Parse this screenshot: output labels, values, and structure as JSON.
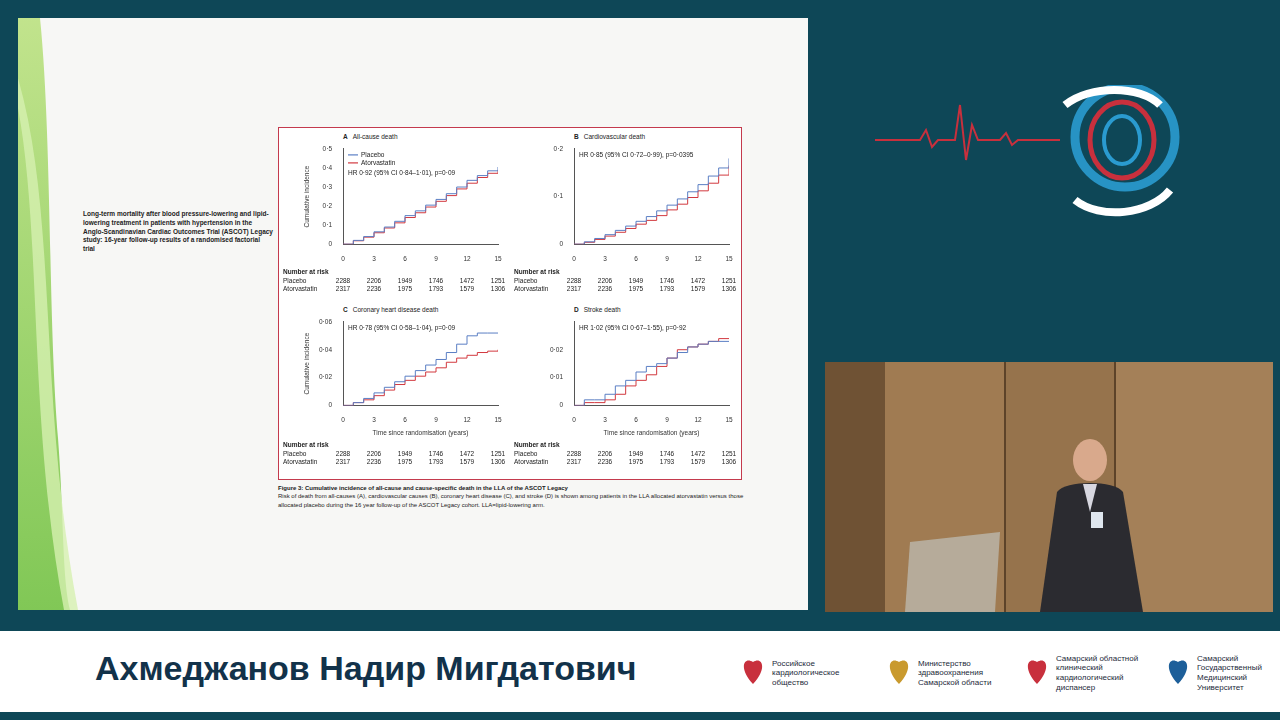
{
  "paper_title": "Long-term mortality after blood pressure-lowering and lipid-lowering treatment in patients with hypertension in the Anglo-Scandinavian Cardiac Outcomes Trial (ASCOT) Legacy study: 16-year follow-up results of a randomised factorial trial",
  "chart_data": [
    {
      "type": "line",
      "panel": "A",
      "title": "All-cause death",
      "annotation": "HR 0·92 (95% CI 0·84–1·01), p=0·09",
      "y_label": "Cumulative incidence",
      "line_style": "steps",
      "grid": false,
      "legend": "upper left",
      "x": [
        0,
        1,
        2,
        3,
        4,
        5,
        6,
        7,
        8,
        9,
        10,
        11,
        12,
        13,
        14,
        15
      ],
      "series": [
        {
          "name": "Placebo",
          "color": "#5b7fc4",
          "values": [
            0,
            0.02,
            0.04,
            0.065,
            0.09,
            0.12,
            0.15,
            0.175,
            0.205,
            0.235,
            0.265,
            0.3,
            0.335,
            0.36,
            0.385,
            0.405
          ]
        },
        {
          "name": "Atorvastatin",
          "color": "#d2393f",
          "values": [
            0,
            0.018,
            0.037,
            0.06,
            0.085,
            0.112,
            0.14,
            0.165,
            0.195,
            0.225,
            0.255,
            0.29,
            0.32,
            0.35,
            0.372,
            0.39
          ]
        }
      ],
      "xlim": [
        0,
        15
      ],
      "xticks": [
        0,
        3,
        6,
        9,
        12,
        15
      ],
      "ylim": [
        0,
        0.5
      ],
      "yticks": [
        0,
        {
          "value": 0.1,
          "label": "0·1"
        },
        {
          "value": 0.2,
          "label": "0·2"
        },
        {
          "value": 0.3,
          "label": "0·3"
        },
        {
          "value": 0.4,
          "label": "0·4"
        },
        {
          "value": 0.5,
          "label": "0·5"
        }
      ],
      "number_at_risk": {
        "title": "Number at risk",
        "rows": [
          {
            "name": "Placebo",
            "values": [
              2288,
              2206,
              1949,
              1746,
              1472,
              1251
            ]
          },
          {
            "name": "Atorvastatin",
            "values": [
              2317,
              2236,
              1975,
              1793,
              1579,
              1306
            ]
          }
        ]
      }
    },
    {
      "type": "line",
      "panel": "B",
      "title": "Cardiovascular death",
      "annotation": "HR 0·85 (95% CI 0·72–0·99), p=0·0395",
      "line_style": "steps",
      "grid": false,
      "x": [
        0,
        1,
        2,
        3,
        4,
        5,
        6,
        7,
        8,
        9,
        10,
        11,
        12,
        13,
        14,
        15
      ],
      "series": [
        {
          "name": "Placebo",
          "color": "#5b7fc4",
          "values": [
            0,
            0.005,
            0.012,
            0.02,
            0.029,
            0.038,
            0.048,
            0.058,
            0.07,
            0.082,
            0.095,
            0.11,
            0.125,
            0.143,
            0.16,
            0.18
          ]
        },
        {
          "name": "Atorvastatin",
          "color": "#d2393f",
          "values": [
            0,
            0.004,
            0.01,
            0.017,
            0.025,
            0.033,
            0.042,
            0.05,
            0.06,
            0.072,
            0.084,
            0.098,
            0.112,
            0.128,
            0.145,
            0.165
          ]
        }
      ],
      "xlim": [
        0,
        15
      ],
      "xticks": [
        0,
        3,
        6,
        9,
        12,
        15
      ],
      "ylim": [
        0,
        0.2
      ],
      "yticks": [
        0,
        {
          "value": 0.1,
          "label": "0·1"
        },
        {
          "value": 0.2,
          "label": "0·2"
        }
      ],
      "number_at_risk": {
        "title": "Number at risk",
        "rows": [
          {
            "name": "Placebo",
            "values": [
              2288,
              2206,
              1949,
              1746,
              1472,
              1251
            ]
          },
          {
            "name": "Atorvastatin",
            "values": [
              2317,
              2236,
              1975,
              1793,
              1579,
              1306
            ]
          }
        ]
      }
    },
    {
      "type": "line",
      "panel": "C",
      "title": "Coronary heart disease death",
      "annotation": "HR 0·78 (95% CI 0·58–1·04), p=0·09",
      "y_label": "Cumulative incidence",
      "x_label": "Time since randomisation (years)",
      "line_style": "steps",
      "grid": false,
      "x": [
        0,
        1,
        2,
        3,
        4,
        5,
        6,
        7,
        8,
        9,
        10,
        11,
        12,
        13,
        14,
        15
      ],
      "series": [
        {
          "name": "Placebo",
          "color": "#5b7fc4",
          "values": [
            0,
            0.002,
            0.005,
            0.009,
            0.013,
            0.017,
            0.021,
            0.025,
            0.029,
            0.033,
            0.038,
            0.044,
            0.05,
            0.052,
            0.052,
            0.052
          ]
        },
        {
          "name": "Atorvastatin",
          "color": "#d2393f",
          "values": [
            0,
            0.002,
            0.004,
            0.007,
            0.011,
            0.015,
            0.018,
            0.021,
            0.024,
            0.027,
            0.031,
            0.034,
            0.036,
            0.038,
            0.039,
            0.04
          ]
        }
      ],
      "xlim": [
        0,
        15
      ],
      "xticks": [
        0,
        3,
        6,
        9,
        12,
        15
      ],
      "ylim": [
        0,
        0.06
      ],
      "yticks": [
        0,
        {
          "value": 0.02,
          "label": "0·02"
        },
        {
          "value": 0.04,
          "label": "0·04"
        },
        {
          "value": 0.06,
          "label": "0·06"
        }
      ],
      "number_at_risk": {
        "title": "Number at risk",
        "rows": [
          {
            "name": "Placebo",
            "values": [
              2288,
              2206,
              1949,
              1746,
              1472,
              1251
            ]
          },
          {
            "name": "Atorvastatin",
            "values": [
              2317,
              2236,
              1975,
              1793,
              1579,
              1306
            ]
          }
        ]
      }
    },
    {
      "type": "line",
      "panel": "D",
      "title": "Stroke death",
      "annotation": "HR 1·02 (95% CI 0·67–1·55), p=0·92",
      "x_label": "Time since randomisation (years)",
      "line_style": "steps",
      "grid": false,
      "x": [
        0,
        1,
        2,
        3,
        4,
        5,
        6,
        7,
        8,
        9,
        10,
        11,
        12,
        13,
        14,
        15
      ],
      "series": [
        {
          "name": "Placebo",
          "color": "#5b7fc4",
          "values": [
            0,
            0.002,
            0.002,
            0.004,
            0.007,
            0.009,
            0.012,
            0.014,
            0.015,
            0.017,
            0.019,
            0.021,
            0.022,
            0.023,
            0.023,
            0.023
          ]
        },
        {
          "name": "Atorvastatin",
          "color": "#d2393f",
          "values": [
            0,
            0.001,
            0.001,
            0.002,
            0.004,
            0.007,
            0.009,
            0.011,
            0.014,
            0.017,
            0.02,
            0.021,
            0.022,
            0.023,
            0.024,
            0.024
          ]
        }
      ],
      "xlim": [
        0,
        15
      ],
      "xticks": [
        0,
        3,
        6,
        9,
        12,
        15
      ],
      "ylim": [
        0,
        0.03
      ],
      "yticks": [
        0,
        {
          "value": 0.01,
          "label": "0·01"
        },
        {
          "value": 0.02,
          "label": "0·02"
        }
      ],
      "number_at_risk": {
        "title": "Number at risk",
        "rows": [
          {
            "name": "Placebo",
            "values": [
              2288,
              2206,
              1949,
              1746,
              1472,
              1251
            ]
          },
          {
            "name": "Atorvastatin",
            "values": [
              2317,
              2236,
              1975,
              1793,
              1579,
              1306
            ]
          }
        ]
      }
    }
  ],
  "caption": {
    "title": "Figure 3: Cumulative incidence of all-cause and cause-specific death in the LLA of the ASCOT Legacy",
    "text": "Risk of death from all-causes (A), cardiovascular causes (B), coronary heart disease (C), and stroke (D) is shown among patients in the LLA allocated atorvastatin versus those allocated placebo during the 16 year follow-up of the ASCOT Legacy cohort. LLA=lipid-lowering arm."
  },
  "banner": {
    "speaker": "Ахмеджанов Надир Мигдатович",
    "organisations": [
      [
        "Российское",
        "кардиологическое",
        "общество"
      ],
      [
        "Министерство",
        "здравоохранения",
        "Самарской области"
      ],
      [
        "Самарский областной",
        "клинический",
        "кардиологический",
        "диспансер"
      ],
      [
        "Самарский",
        "Государственный",
        "Медицинский",
        "Университет"
      ]
    ]
  }
}
